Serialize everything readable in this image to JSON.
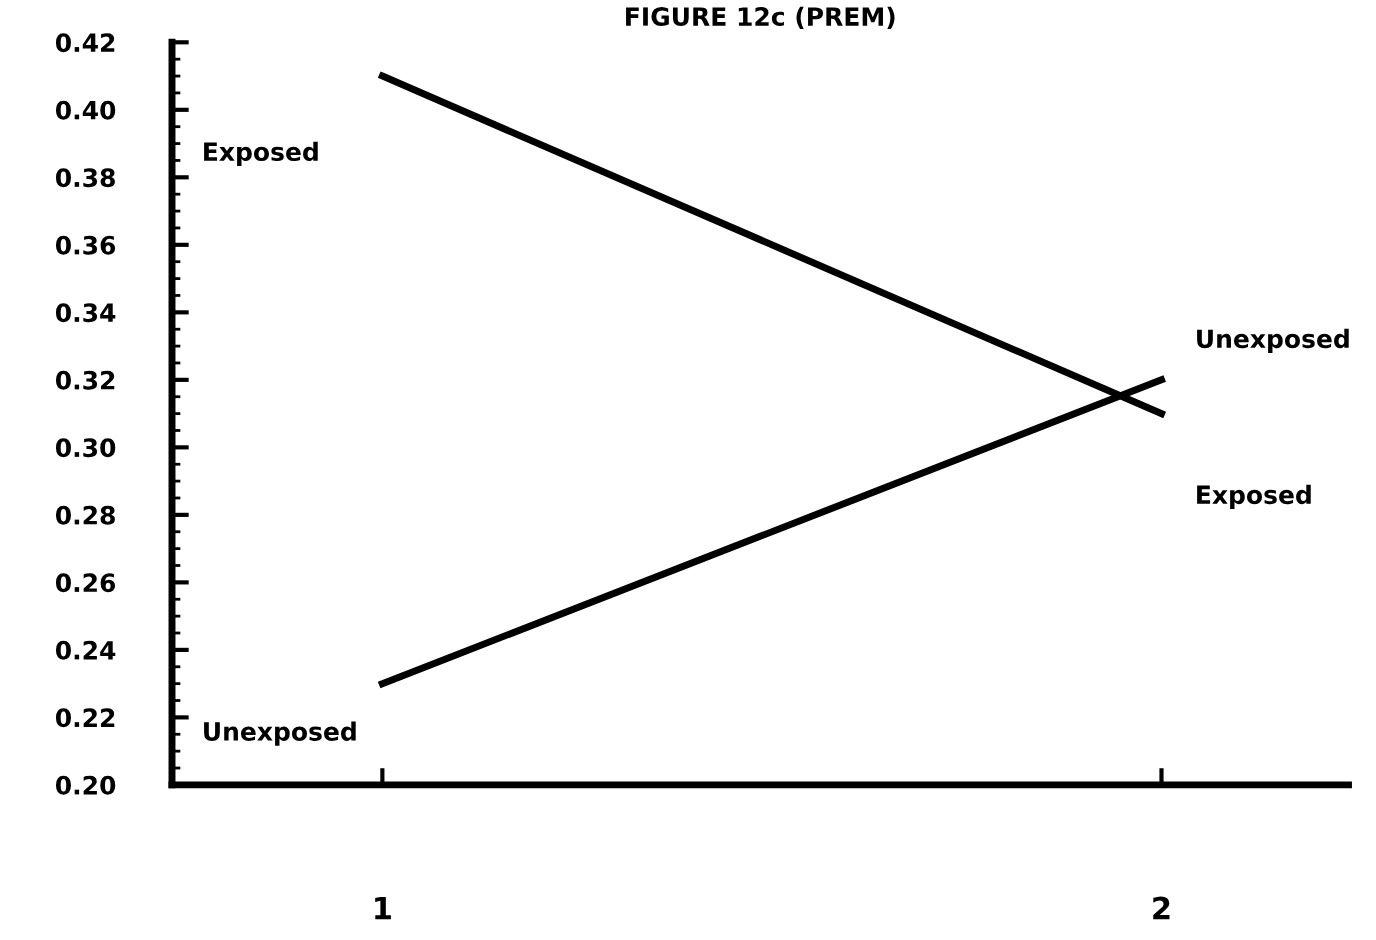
{
  "chart_data": {
    "type": "line",
    "title": "FIGURE 12c (PREM)",
    "categories": [
      "1",
      "2"
    ],
    "series": [
      {
        "name": "Exposed",
        "color": "#000000",
        "values": [
          0.41,
          0.31
        ]
      },
      {
        "name": "Unexposed",
        "color": "#000000",
        "values": [
          0.23,
          0.32
        ]
      }
    ],
    "ylim": [
      0.2,
      0.42
    ],
    "yticks": [
      {
        "value": 0.2,
        "label": "0.20"
      },
      {
        "value": 0.22,
        "label": "0.22"
      },
      {
        "value": 0.24,
        "label": "0.24"
      },
      {
        "value": 0.26,
        "label": "0.26"
      },
      {
        "value": 0.28,
        "label": "0.28"
      },
      {
        "value": 0.3,
        "label": "0.30"
      },
      {
        "value": 0.32,
        "label": "0.32"
      },
      {
        "value": 0.34,
        "label": "0.34"
      },
      {
        "value": 0.36,
        "label": "0.36"
      },
      {
        "value": 0.38,
        "label": "0.38"
      },
      {
        "value": 0.4,
        "label": "0.40"
      },
      {
        "value": 0.42,
        "label": "0.42"
      }
    ],
    "grid": false,
    "legend": false,
    "marker": "none",
    "line_style": "solid"
  }
}
